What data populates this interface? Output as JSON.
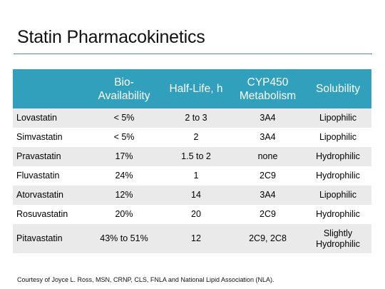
{
  "slide": {
    "title": "Statin Pharmacokinetics",
    "footnote": "Courtesy of Joyce L. Ross, MSN, CRNP, CLS, FNLA and National Lipid Association (NLA)."
  },
  "table": {
    "headers": [
      {
        "line1": "",
        "line2": ""
      },
      {
        "line1": "Bio-",
        "line2": "Availability"
      },
      {
        "line1": "",
        "line2": "Half-Life, h"
      },
      {
        "line1": "CYP450",
        "line2": "Metabolism"
      },
      {
        "line1": "",
        "line2": "Solubility"
      }
    ],
    "rows": [
      {
        "drug": "Lovastatin",
        "bio": "< 5%",
        "half": "2 to 3",
        "cyp": "3A4",
        "sol": "Lipophilic",
        "sol2": ""
      },
      {
        "drug": "Simvastatin",
        "bio": "< 5%",
        "half": "2",
        "cyp": "3A4",
        "sol": "Lipophilic",
        "sol2": ""
      },
      {
        "drug": "Pravastatin",
        "bio": "17%",
        "half": "1.5 to 2",
        "cyp": "none",
        "sol": "Hydrophilic",
        "sol2": ""
      },
      {
        "drug": "Fluvastatin",
        "bio": "24%",
        "half": "1",
        "cyp": "2C9",
        "sol": "Hydrophilic",
        "sol2": ""
      },
      {
        "drug": "Atorvastatin",
        "bio": "12%",
        "half": "14",
        "cyp": "3A4",
        "sol": "Lipophilic",
        "sol2": ""
      },
      {
        "drug": "Rosuvastatin",
        "bio": "20%",
        "half": "20",
        "cyp": "2C9",
        "sol": "Hydrophilic",
        "sol2": ""
      },
      {
        "drug": "Pitavastatin",
        "bio": "43% to 51%",
        "half": "12",
        "cyp": "2C9, 2C8",
        "sol": "Slightly",
        "sol2": "Hydrophilic"
      }
    ]
  },
  "colors": {
    "header_bg": "#31a0bd",
    "header_text": "#ffffff",
    "stripe": "#eaeaea",
    "rule": "#4e8ea3"
  }
}
